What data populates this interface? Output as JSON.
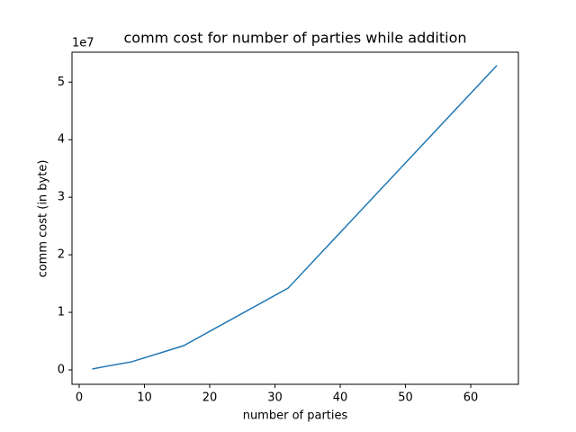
{
  "chart_data": {
    "type": "line",
    "title": "comm cost for number of parties while addition",
    "x_label": "number of parties",
    "y_label": "comm cost (in byte)",
    "y_offset_label": "1e7",
    "x": [
      2,
      4,
      8,
      16,
      32,
      64
    ],
    "series": [
      {
        "color": "#1f77b4",
        "values": [
          0.016,
          0.06,
          0.14,
          0.42,
          1.42,
          5.29
        ]
      }
    ],
    "xlim": [
      -1.1,
      67.3
    ],
    "xticks": [
      0,
      10,
      20,
      30,
      40,
      50,
      60
    ],
    "ylim": [
      -0.25,
      5.52
    ],
    "yticks": [
      0,
      1,
      2,
      3,
      4,
      5
    ]
  }
}
